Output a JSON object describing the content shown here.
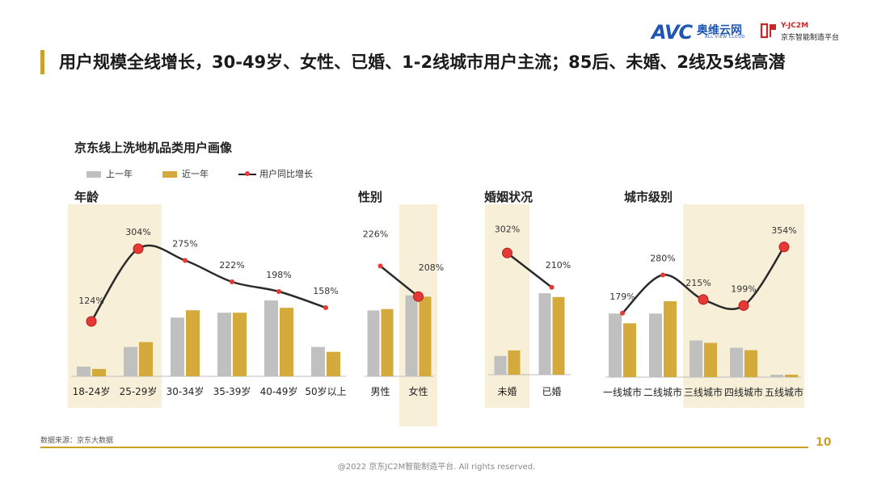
{
  "header": {
    "headline": "用户规模全线增长，30-49岁、女性、已婚、1-2线城市用户主流；85后、未婚、2线及5线高潜",
    "logo_avc": "AVC",
    "logo_avc_cn": "奥维云网",
    "logo_avc_en": "ALL VIEW CLOUD",
    "logo_jc_name": "Y-JC2M",
    "logo_jc_sub": "京东智能制造平台"
  },
  "chart_data": {
    "type": "bar",
    "title": "京东线上洗地机品类用户画像",
    "legend": [
      "上一年",
      "近一年",
      "用户同比增长"
    ],
    "colors": {
      "prev": "#c0c0c0",
      "recent": "#d4aa3c",
      "line": "#2a2a2a",
      "dot": "#e53935",
      "highlight": "#f8efd9"
    },
    "panels": [
      {
        "name": "年龄",
        "categories": [
          "18-24岁",
          "25-29岁",
          "30-34岁",
          "35-39岁",
          "40-49岁",
          "50岁以上"
        ],
        "series": [
          {
            "name": "上一年",
            "values": [
              4,
              12,
              24,
              26,
              31,
              12
            ]
          },
          {
            "name": "近一年",
            "values": [
              3,
              14,
              27,
              26,
              28,
              10
            ]
          }
        ],
        "growth": [
          124,
          304,
          275,
          222,
          198,
          158
        ],
        "growth_labels": [
          "124%",
          "304%",
          "275%",
          "222%",
          "198%",
          "158%"
        ],
        "highlight": [
          0,
          1
        ]
      },
      {
        "name": "性别",
        "categories": [
          "男性",
          "女性"
        ],
        "series": [
          {
            "name": "上一年",
            "values": [
              48,
              59
            ]
          },
          {
            "name": "近一年",
            "values": [
              49,
              58
            ]
          }
        ],
        "growth": [
          226,
          208
        ],
        "growth_labels": [
          "226%",
          "208%"
        ],
        "highlight": [
          1
        ]
      },
      {
        "name": "婚姻状况",
        "categories": [
          "未婚",
          "已婚"
        ],
        "series": [
          {
            "name": "上一年",
            "values": [
              20,
              87
            ]
          },
          {
            "name": "近一年",
            "values": [
              26,
              83
            ]
          }
        ],
        "growth": [
          302,
          210
        ],
        "growth_labels": [
          "302%",
          "210%"
        ],
        "highlight": [
          0
        ]
      },
      {
        "name": "城市级别",
        "categories": [
          "一线城市",
          "二线城市",
          "三线城市",
          "四线城市",
          "五线城市"
        ],
        "series": [
          {
            "name": "上一年",
            "values": [
              26,
              26,
              15,
              12,
              1
            ]
          },
          {
            "name": "近一年",
            "values": [
              22,
              31,
              14,
              11,
              1
            ]
          }
        ],
        "growth": [
          179,
          280,
          215,
          199,
          354
        ],
        "growth_labels": [
          "179%",
          "280%",
          "215%",
          "199%",
          "354%"
        ],
        "highlight": [
          2,
          3,
          4
        ]
      }
    ]
  },
  "footer": {
    "source": "数据来源：京东大数据",
    "page_number": "10",
    "copyright": "@2022 京东JC2M智能制造平台. All rights reserved."
  }
}
